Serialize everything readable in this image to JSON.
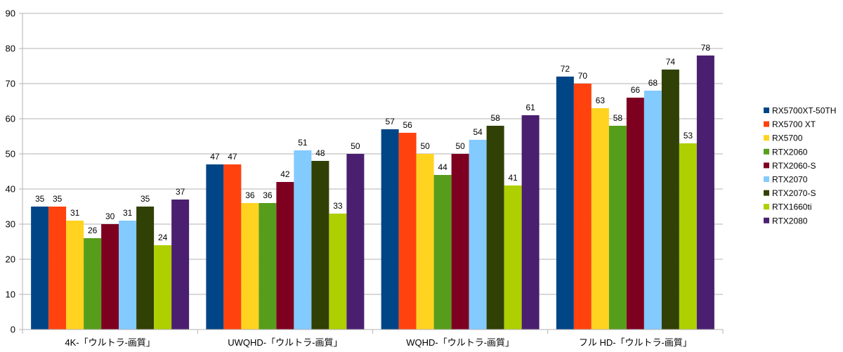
{
  "chart_data": {
    "type": "bar",
    "categories": [
      "4K-「ウルトラ-画質」",
      "UWQHD-「ウルトラ-画質」",
      "WQHD-「ウルトラ-画質」",
      "フル HD-「ウルトラ-画質」"
    ],
    "series": [
      {
        "name": "RX5700XT-50TH",
        "color": "#004586",
        "values": [
          35,
          47,
          57,
          72
        ]
      },
      {
        "name": "RX5700 XT",
        "color": "#ff420e",
        "values": [
          35,
          47,
          56,
          70
        ]
      },
      {
        "name": "RX5700",
        "color": "#ffd320",
        "values": [
          31,
          36,
          50,
          63
        ]
      },
      {
        "name": "RTX2060",
        "color": "#579d1c",
        "values": [
          26,
          36,
          44,
          58
        ]
      },
      {
        "name": "RTX2060-S",
        "color": "#7e0021",
        "values": [
          30,
          42,
          50,
          66
        ]
      },
      {
        "name": "RTX2070",
        "color": "#83caff",
        "values": [
          31,
          51,
          54,
          68
        ]
      },
      {
        "name": "RTX2070-S",
        "color": "#314004",
        "values": [
          35,
          48,
          58,
          74
        ]
      },
      {
        "name": "RTX1660ti",
        "color": "#aecf00",
        "values": [
          24,
          33,
          41,
          53
        ]
      },
      {
        "name": "RTX2080",
        "color": "#4b1f6f",
        "values": [
          37,
          50,
          61,
          78
        ]
      }
    ],
    "ylim": [
      0,
      90
    ],
    "yticks": [
      0,
      10,
      20,
      30,
      40,
      50,
      60,
      70,
      80,
      90
    ],
    "grid": true,
    "legend_position": "right",
    "data_labels": true,
    "title": "",
    "xlabel": "",
    "ylabel": ""
  }
}
